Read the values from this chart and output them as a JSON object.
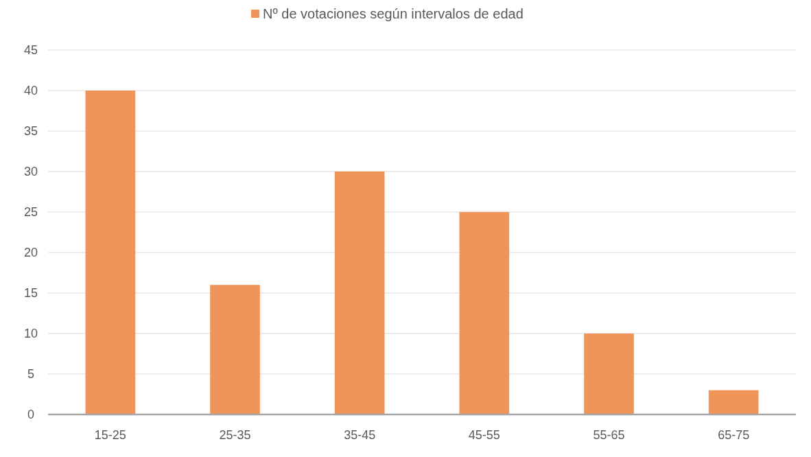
{
  "chart_data": {
    "type": "bar",
    "categories": [
      "15-25",
      "25-35",
      "35-45",
      "45-55",
      "55-65",
      "65-75"
    ],
    "series": [
      {
        "name": "Nº de votaciones según intervalos de edad",
        "color": "#f0955a",
        "values": [
          40,
          16,
          30,
          25,
          10,
          3
        ]
      }
    ],
    "ylim": [
      0,
      45
    ],
    "yticks": [
      0,
      5,
      10,
      15,
      20,
      25,
      30,
      35,
      40,
      45
    ],
    "grid": "y",
    "legend": "top"
  }
}
